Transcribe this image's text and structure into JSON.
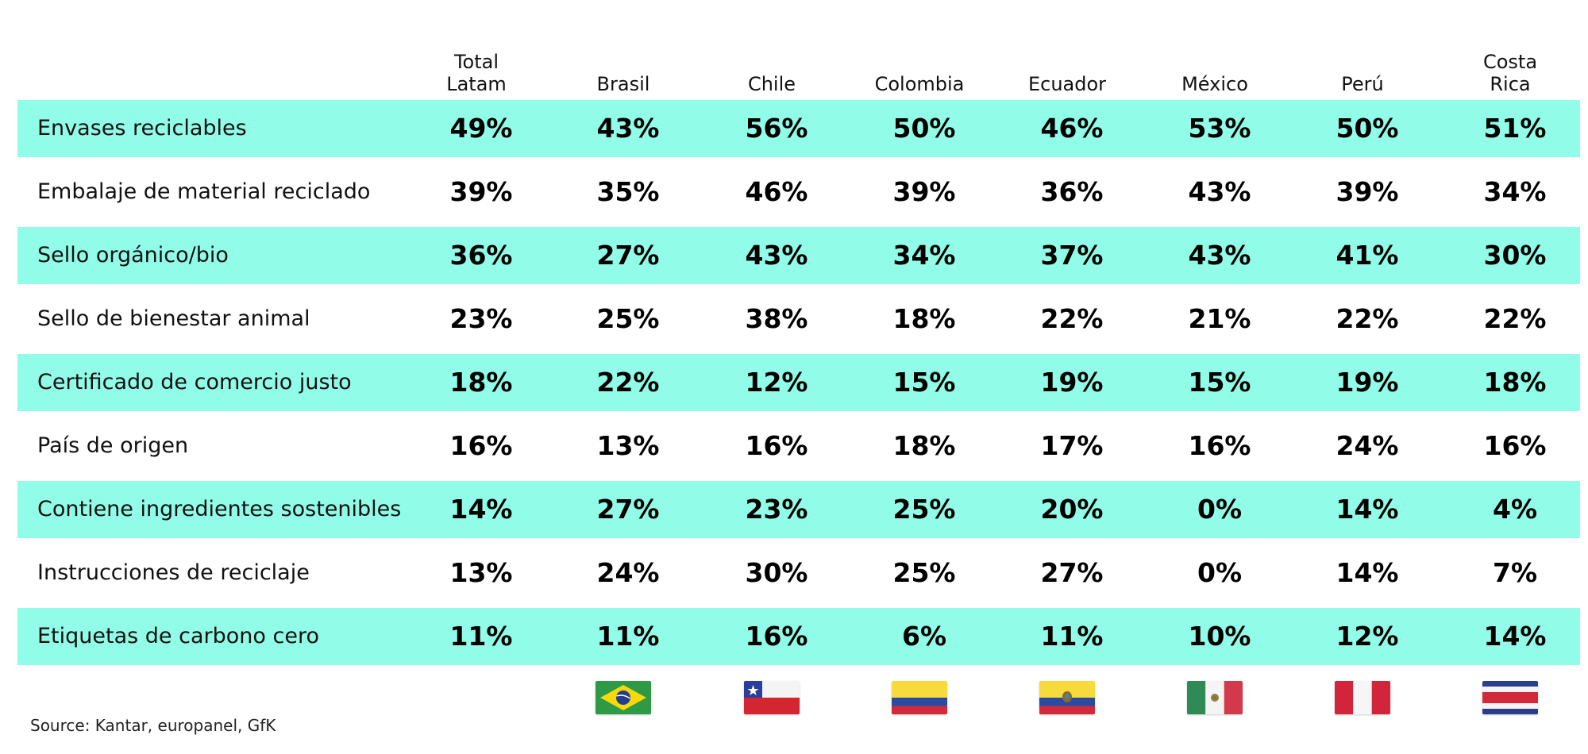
{
  "chart_data": {
    "type": "table",
    "columns": [
      "Total\nLatam",
      "Brasil",
      "Chile",
      "Colombia",
      "Ecuador",
      "México",
      "Perú",
      "Costa\nRica"
    ],
    "rows": [
      {
        "label": "Envases reciclables",
        "values": [
          "49%",
          "43%",
          "56%",
          "50%",
          "46%",
          "53%",
          "50%",
          "51%"
        ]
      },
      {
        "label": "Embalaje de material reciclado",
        "values": [
          "39%",
          "35%",
          "46%",
          "39%",
          "36%",
          "43%",
          "39%",
          "34%"
        ]
      },
      {
        "label": "Sello orgánico/bio",
        "values": [
          "36%",
          "27%",
          "43%",
          "34%",
          "37%",
          "43%",
          "41%",
          "30%"
        ]
      },
      {
        "label": "Sello de bienestar animal",
        "values": [
          "23%",
          "25%",
          "38%",
          "18%",
          "22%",
          "21%",
          "22%",
          "22%"
        ]
      },
      {
        "label": "Certificado de comercio justo",
        "values": [
          "18%",
          "22%",
          "12%",
          "15%",
          "19%",
          "15%",
          "19%",
          "18%"
        ]
      },
      {
        "label": "País de origen",
        "values": [
          "16%",
          "13%",
          "16%",
          "18%",
          "17%",
          "16%",
          "24%",
          "16%"
        ]
      },
      {
        "label": "Contiene ingredientes sostenibles",
        "values": [
          "14%",
          "27%",
          "23%",
          "25%",
          "20%",
          "0%",
          "14%",
          "4%"
        ]
      },
      {
        "label": "Instrucciones de reciclaje",
        "values": [
          "13%",
          "24%",
          "30%",
          "25%",
          "27%",
          "0%",
          "14%",
          "7%"
        ]
      },
      {
        "label": "Etiquetas de carbono cero",
        "values": [
          "11%",
          "11%",
          "16%",
          "6%",
          "11%",
          "10%",
          "12%",
          "14%"
        ]
      }
    ],
    "shaded_row_color": "#91fce7",
    "flags": [
      "",
      "brazil-flag",
      "chile-flag",
      "colombia-flag",
      "ecuador-flag",
      "mexico-flag",
      "peru-flag",
      "costa-rica-flag"
    ]
  },
  "source": "Source: Kantar, europanel, GfK"
}
